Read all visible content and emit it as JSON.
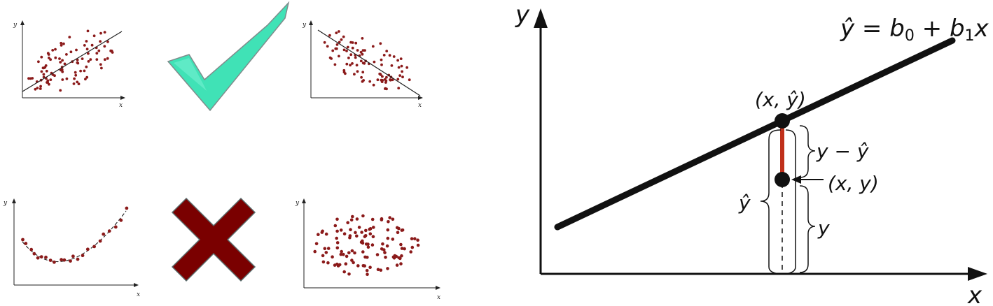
{
  "thumbnails": {
    "positive_linear": {
      "x_label": "x",
      "y_label": "y"
    },
    "negative_linear": {
      "x_label": "x",
      "y_label": "y"
    },
    "curved": {
      "x_label": "x",
      "y_label": "y"
    },
    "no_correlation": {
      "x_label": "x",
      "y_label": "y"
    }
  },
  "marks": {
    "check": {
      "icon": "check-icon",
      "color": "#3fe0b4"
    },
    "cross": {
      "icon": "cross-icon",
      "color": "#7a0000"
    }
  },
  "regression": {
    "x_axis_label": "x",
    "y_axis_label": "y",
    "equation": {
      "lhs": "ŷ",
      "equals": " = ",
      "b0": "b",
      "b0_sub": "0",
      "plus": " + ",
      "b1": "b",
      "b1_sub": "1",
      "x": "x"
    },
    "point_hat_label": "(x, ŷ)",
    "point_label": "(x, y)",
    "residual_label": "y − ŷ",
    "brace_y_hat_label": "ŷ",
    "brace_y_label": "y",
    "colors": {
      "line": "#111111",
      "residual": "#c0301a",
      "dot": "#8b1a1a"
    }
  }
}
